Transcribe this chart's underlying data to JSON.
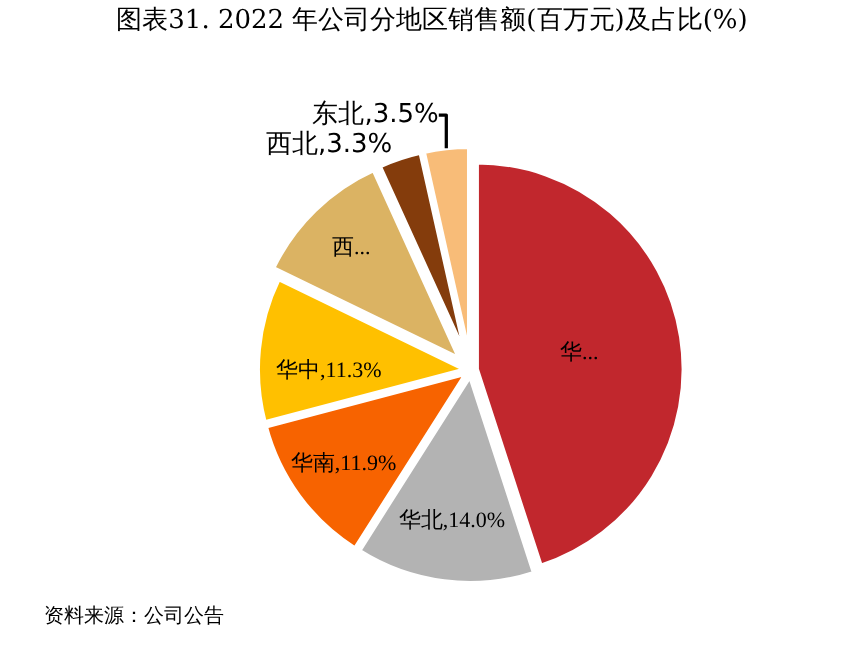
{
  "chart_data": {
    "type": "pie",
    "title": "图表31. 2022 年公司分地区销售额(百万元)及占比(%)",
    "categories": [
      "华...",
      "华北",
      "华南",
      "华中",
      "西...",
      "西北",
      "东北"
    ],
    "values": [
      45.0,
      14.0,
      11.9,
      11.3,
      11.0,
      3.3,
      3.5
    ],
    "value_labels": [
      null,
      "14.0%",
      "11.9%",
      "11.3%",
      null,
      "3.3%",
      "3.5%"
    ],
    "colors": [
      "#c1272d",
      "#b3b3b3",
      "#f76300",
      "#ffc000",
      "#dbb363",
      "#843c0c",
      "#f8bc78"
    ],
    "annotations": [
      "资料来源：公司公告"
    ],
    "legend": false
  }
}
